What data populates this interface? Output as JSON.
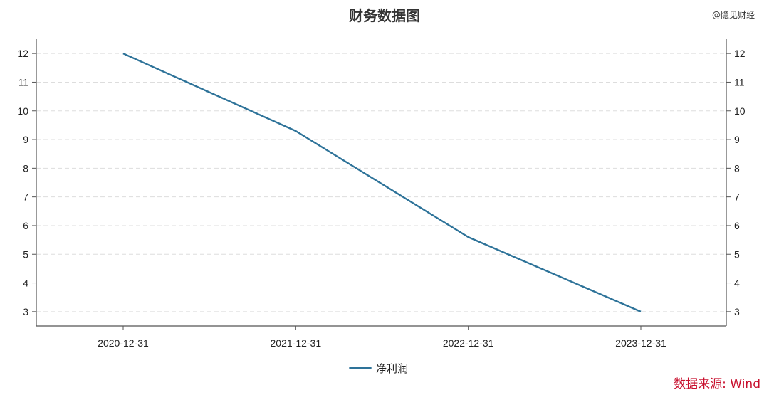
{
  "watermark": "@隐见财经",
  "source": "数据来源: Wind",
  "chart_data": {
    "type": "line",
    "title": "财务数据图",
    "xlabel": "",
    "ylabel": "",
    "categories": [
      "2020-12-31",
      "2021-12-31",
      "2022-12-31",
      "2023-12-31"
    ],
    "series": [
      {
        "name": "净利润",
        "values": [
          12.0,
          9.3,
          5.6,
          3.0
        ],
        "color": "#2e7399"
      }
    ],
    "ylim": [
      2.5,
      12.5
    ],
    "yticks": [
      3,
      4,
      5,
      6,
      7,
      8,
      9,
      10,
      11,
      12
    ],
    "secondary_y_axis": true,
    "grid": true,
    "grid_style": "dashed-horizontal",
    "legend_position": "bottom-center"
  }
}
